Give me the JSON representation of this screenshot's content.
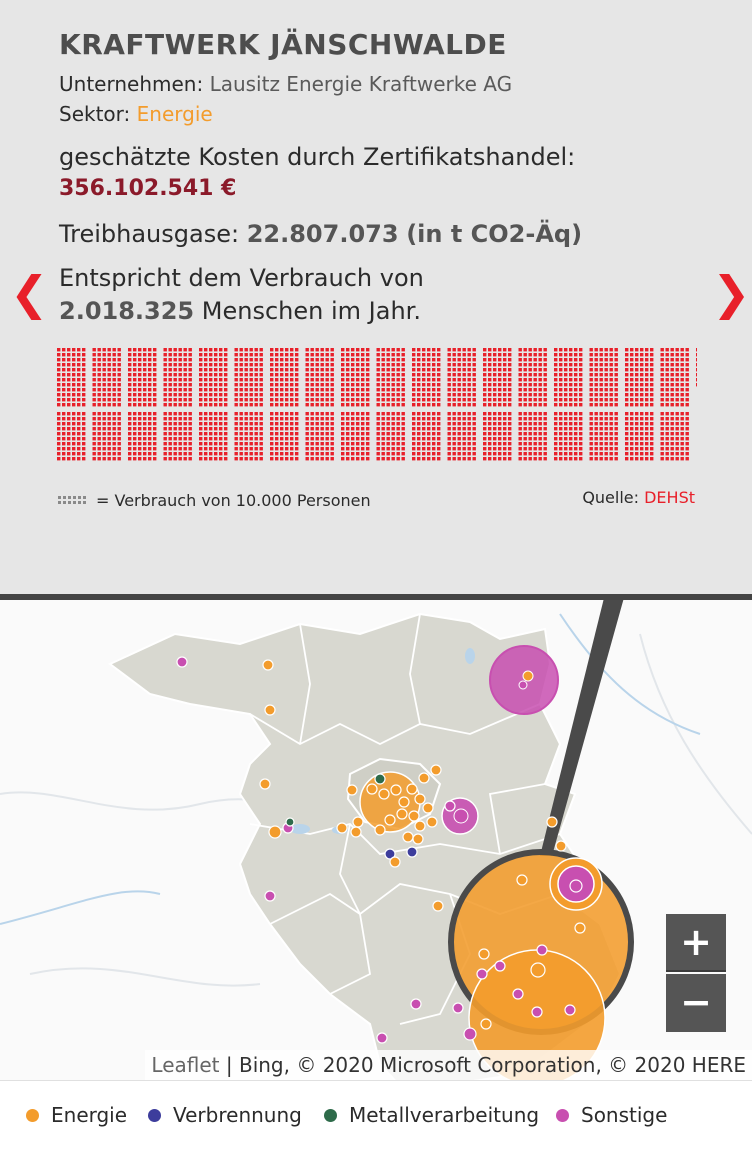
{
  "title": "KRAFTWERK JÄNSCHWALDE",
  "company": {
    "label": "Unternehmen:",
    "value": "Lausitz Energie Kraftwerke AG"
  },
  "sector": {
    "label": "Sektor:",
    "value": "Energie"
  },
  "cost": {
    "label": "geschätzte Kosten durch Zertifikatshandel:",
    "value": "356.102.541 €"
  },
  "ghg": {
    "label": "Treibhausgase:",
    "value": "22.807.073",
    "unit": "(in t CO2-Äq)"
  },
  "equivalent": {
    "line1": "Entspricht dem Verbrauch von",
    "value": "2.018.325",
    "suffix": "Menschen im Jahr."
  },
  "people_units": 202,
  "unit_legend": "= Verbrauch von 10.000 Personen",
  "source": {
    "label": "Quelle:",
    "value": "DEHSt"
  },
  "nav": {
    "prev": "❮",
    "next": "❯"
  },
  "zoom": {
    "in": "+",
    "out": "−"
  },
  "attribution": {
    "leaflet": "Leaflet",
    "rest": " | Bing, © 2020 Microsoft Corporation, © 2020 HERE"
  },
  "colors": {
    "energie": "#f39c2c",
    "verbrennung": "#3d3d9c",
    "metall": "#2e6b4a",
    "sonstige": "#c84fb0",
    "accent": "#e8202a"
  },
  "legend": [
    {
      "label": "Energie",
      "color": "#f39c2c"
    },
    {
      "label": "Verbrennung",
      "color": "#3d3d9c"
    },
    {
      "label": "Metallverarbeitung",
      "color": "#2e6b4a"
    },
    {
      "label": "Sonstige",
      "color": "#c84fb0"
    }
  ]
}
